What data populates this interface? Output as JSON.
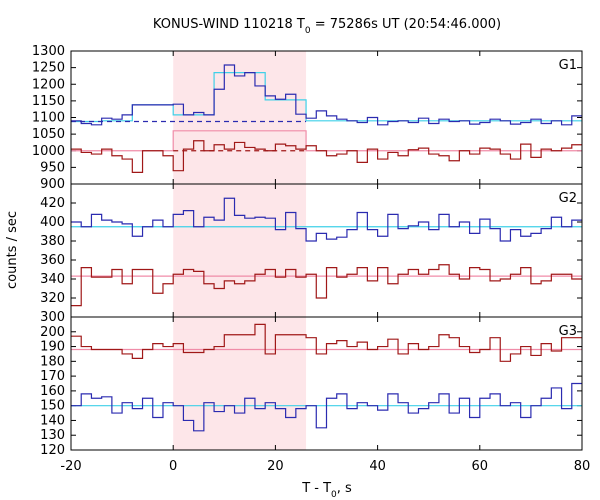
{
  "chart_data": {
    "type": "line",
    "title_main": "KONUS-WIND 110218 T",
    "title_sub": "0",
    "title_rest": " = 75286s UT (20:54:46.000)",
    "ylabel": "counts / sec",
    "xlabel_main": "T - T",
    "xlabel_sub": "0",
    "xlabel_rest": ", s",
    "xlim": [
      -20,
      80
    ],
    "x_ticks": [
      -20,
      0,
      20,
      40,
      60,
      80
    ],
    "highlight_x": [
      0,
      26
    ],
    "colors": {
      "highlight": "#fde6e9",
      "blue": "#2b2bb0",
      "red": "#a01818",
      "cyan": "#3fd0e8",
      "pink": "#f08ca8"
    },
    "panels": [
      {
        "label": "G1",
        "ylim": [
          900,
          1300
        ],
        "y_ticks": [
          900,
          950,
          1000,
          1050,
          1100,
          1150,
          1200,
          1250,
          1300
        ],
        "edges": [
          -20,
          -18,
          -16,
          -14,
          -12,
          -10,
          -8,
          -6,
          -4,
          -2,
          0,
          2,
          4,
          6,
          8,
          10,
          12,
          14,
          16,
          18,
          20,
          22,
          24,
          26,
          28,
          30,
          32,
          34,
          36,
          38,
          40,
          42,
          44,
          46,
          48,
          50,
          52,
          54,
          56,
          58,
          60,
          62,
          64,
          66,
          68,
          70,
          72,
          74,
          76,
          78,
          80
        ],
        "series": [
          {
            "color_key": "blue",
            "values": [
              1090,
              1082,
              1078,
              1098,
              1095,
              1108,
              1138,
              1138,
              1138,
              1138,
              1140,
              1108,
              1115,
              1108,
              1185,
              1258,
              1225,
              1235,
              1195,
              1165,
              1155,
              1170,
              1110,
              1098,
              1120,
              1105,
              1095,
              1090,
              1085,
              1100,
              1078,
              1088,
              1090,
              1085,
              1098,
              1082,
              1095,
              1088,
              1090,
              1080,
              1085,
              1095,
              1090,
              1080,
              1085,
              1095,
              1082,
              1090,
              1078,
              1105
            ]
          },
          {
            "color_key": "red",
            "values": [
              1005,
              995,
              990,
              1005,
              985,
              975,
              935,
              1000,
              1000,
              985,
              940,
              1005,
              1030,
              1000,
              1018,
              1005,
              1025,
              1010,
              1005,
              1000,
              1020,
              1015,
              1005,
              1015,
              1000,
              985,
              990,
              1000,
              965,
              1005,
              975,
              995,
              985,
              1003,
              1008,
              990,
              985,
              970,
              1000,
              990,
              1008,
              1005,
              990,
              975,
              1020,
              980,
              1005,
              1000,
              1008,
              1018
            ]
          }
        ],
        "fits": [
          {
            "color_key": "cyan",
            "segments": [
              [
                -20,
                -14,
                1088
              ],
              [
                -14,
                -8,
                1090
              ],
              [
                -8,
                0,
                1138
              ],
              [
                0,
                8,
                1108
              ],
              [
                8,
                18,
                1235
              ],
              [
                18,
                26,
                1153
              ],
              [
                26,
                80,
                1090
              ]
            ]
          },
          {
            "color_key": "pink",
            "segments": [
              [
                -20,
                0,
                1000
              ],
              [
                0,
                26,
                1060
              ],
              [
                26,
                80,
                1000
              ]
            ]
          }
        ],
        "dashed": [
          {
            "color_key": "blue",
            "segments": [
              [
                -20,
                26,
                1088
              ]
            ]
          },
          {
            "color_key": "red",
            "segments": [
              [
                0,
                26,
                1000
              ]
            ]
          }
        ]
      },
      {
        "label": "G2",
        "ylim": [
          300,
          440
        ],
        "y_ticks": [
          300,
          320,
          340,
          360,
          380,
          400,
          420
        ],
        "edges": [
          -20,
          -18,
          -16,
          -14,
          -12,
          -10,
          -8,
          -6,
          -4,
          -2,
          0,
          2,
          4,
          6,
          8,
          10,
          12,
          14,
          16,
          18,
          20,
          22,
          24,
          26,
          28,
          30,
          32,
          34,
          36,
          38,
          40,
          42,
          44,
          46,
          48,
          50,
          52,
          54,
          56,
          58,
          60,
          62,
          64,
          66,
          68,
          70,
          72,
          74,
          76,
          78,
          80
        ],
        "series": [
          {
            "color_key": "blue",
            "values": [
              400,
              395,
              408,
              402,
              400,
              398,
              385,
              395,
              402,
              395,
              408,
              412,
              395,
              405,
              402,
              425,
              407,
              404,
              405,
              404,
              392,
              410,
              393,
              380,
              388,
              382,
              384,
              392,
              410,
              392,
              385,
              408,
              393,
              396,
              400,
              392,
              408,
              395,
              400,
              388,
              403,
              393,
              380,
              392,
              385,
              388,
              393,
              405,
              395,
              402
            ]
          },
          {
            "color_key": "red",
            "values": [
              312,
              352,
              342,
              342,
              350,
              335,
              350,
              350,
              325,
              335,
              345,
              350,
              348,
              335,
              330,
              338,
              335,
              338,
              345,
              350,
              342,
              350,
              342,
              345,
              320,
              352,
              342,
              345,
              352,
              338,
              352,
              335,
              345,
              350,
              345,
              350,
              355,
              345,
              340,
              352,
              350,
              338,
              340,
              345,
              352,
              335,
              338,
              345,
              345,
              340
            ]
          }
        ],
        "fits": [
          {
            "color_key": "cyan",
            "segments": [
              [
                -20,
                80,
                395
              ]
            ]
          },
          {
            "color_key": "pink",
            "segments": [
              [
                -20,
                80,
                343
              ]
            ]
          }
        ],
        "dashed": []
      },
      {
        "label": "G3",
        "ylim": [
          120,
          210
        ],
        "y_ticks": [
          120,
          130,
          140,
          150,
          160,
          170,
          180,
          190,
          200
        ],
        "edges": [
          -20,
          -18,
          -16,
          -14,
          -12,
          -10,
          -8,
          -6,
          -4,
          -2,
          0,
          2,
          4,
          6,
          8,
          10,
          12,
          14,
          16,
          18,
          20,
          22,
          24,
          26,
          28,
          30,
          32,
          34,
          36,
          38,
          40,
          42,
          44,
          46,
          48,
          50,
          52,
          54,
          56,
          58,
          60,
          62,
          64,
          66,
          68,
          70,
          72,
          74,
          76,
          78,
          80
        ],
        "series": [
          {
            "color_key": "red",
            "values": [
              197,
              190,
              188,
              188,
              188,
              185,
              182,
              188,
              192,
              190,
              192,
              186,
              186,
              188,
              190,
              198,
              198,
              198,
              205,
              185,
              198,
              198,
              198,
              196,
              185,
              192,
              194,
              190,
              193,
              188,
              190,
              195,
              185,
              192,
              188,
              190,
              198,
              196,
              190,
              186,
              188,
              196,
              180,
              185,
              190,
              184,
              192,
              187,
              196,
              196
            ]
          },
          {
            "color_key": "blue",
            "values": [
              150,
              158,
              155,
              156,
              145,
              152,
              148,
              155,
              142,
              152,
              150,
              140,
              133,
              152,
              146,
              150,
              145,
              155,
              148,
              152,
              148,
              142,
              148,
              150,
              135,
              155,
              158,
              148,
              152,
              150,
              147,
              158,
              152,
              145,
              148,
              152,
              158,
              145,
              155,
              142,
              155,
              158,
              150,
              152,
              142,
              150,
              155,
              162,
              148,
              165
            ]
          }
        ],
        "fits": [
          {
            "color_key": "cyan",
            "segments": [
              [
                -20,
                80,
                150
              ]
            ]
          },
          {
            "color_key": "pink",
            "segments": [
              [
                -20,
                80,
                188
              ]
            ]
          }
        ],
        "dashed": []
      }
    ]
  }
}
